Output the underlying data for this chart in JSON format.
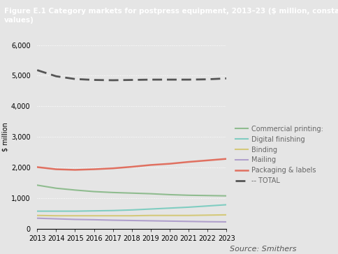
{
  "title_line1": "Figure E.1 Category markets for postpress equipment, 2013–23 ($ million, constant 2016",
  "title_line2": "values)",
  "source": "Source: Smithers",
  "ylabel": "$ million",
  "years": [
    2013,
    2014,
    2015,
    2016,
    2017,
    2018,
    2019,
    2020,
    2021,
    2022,
    2023
  ],
  "series": {
    "Commercial printing:": {
      "values": [
        1420,
        1320,
        1260,
        1210,
        1180,
        1160,
        1140,
        1110,
        1090,
        1080,
        1070
      ],
      "color": "#8fbc8f",
      "linewidth": 1.5,
      "dash": false
    },
    "Digital finishing": {
      "values": [
        570,
        570,
        570,
        580,
        590,
        610,
        640,
        670,
        700,
        740,
        780
      ],
      "color": "#80cdc1",
      "linewidth": 1.5,
      "dash": false
    },
    "Binding": {
      "values": [
        430,
        420,
        420,
        420,
        420,
        420,
        430,
        430,
        430,
        440,
        450
      ],
      "color": "#d4c97a",
      "linewidth": 1.5,
      "dash": false
    },
    "Mailing": {
      "values": [
        340,
        320,
        300,
        290,
        275,
        265,
        255,
        245,
        235,
        225,
        220
      ],
      "color": "#b0a0cc",
      "linewidth": 1.5,
      "dash": false
    },
    "Packaging & labels": {
      "values": [
        2010,
        1940,
        1920,
        1940,
        1970,
        2020,
        2080,
        2120,
        2180,
        2230,
        2280
      ],
      "color": "#e07060",
      "linewidth": 1.8,
      "dash": false
    },
    "-- TOTAL": {
      "values": [
        5180,
        4980,
        4890,
        4860,
        4850,
        4860,
        4870,
        4870,
        4870,
        4880,
        4910
      ],
      "color": "#555555",
      "linewidth": 2.0,
      "dash": true
    }
  },
  "ylim": [
    0,
    6000
  ],
  "yticks": [
    0,
    1000,
    2000,
    3000,
    4000,
    5000,
    6000
  ],
  "background_color": "#e5e5e5",
  "plot_bg_color": "#e5e5e5",
  "title_bg_color": "#1a1a1a",
  "title_text_color": "#ffffff",
  "grid_color": "#ffffff",
  "grid_linestyle": ":",
  "grid_linewidth": 0.7,
  "axis_label_fontsize": 7,
  "tick_fontsize": 7,
  "legend_fontsize": 7,
  "title_fontsize": 7.5,
  "source_fontsize": 8
}
